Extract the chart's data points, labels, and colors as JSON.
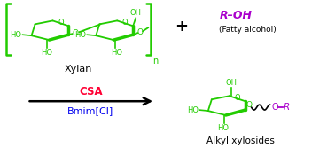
{
  "bg_color": "#ffffff",
  "green": "#22cc00",
  "purple": "#aa00cc",
  "red": "#ff0033",
  "blue": "#0000ee",
  "black": "#000000",
  "label_xylan": "Xylan",
  "label_fatty": "(Fatty alcohol)",
  "label_roh": "R–OH",
  "label_csa": "CSA",
  "label_bmim": "Bmim[Cl]",
  "label_product": "Alkyl xylosides",
  "fig_width": 3.78,
  "fig_height": 1.67,
  "dpi": 100
}
